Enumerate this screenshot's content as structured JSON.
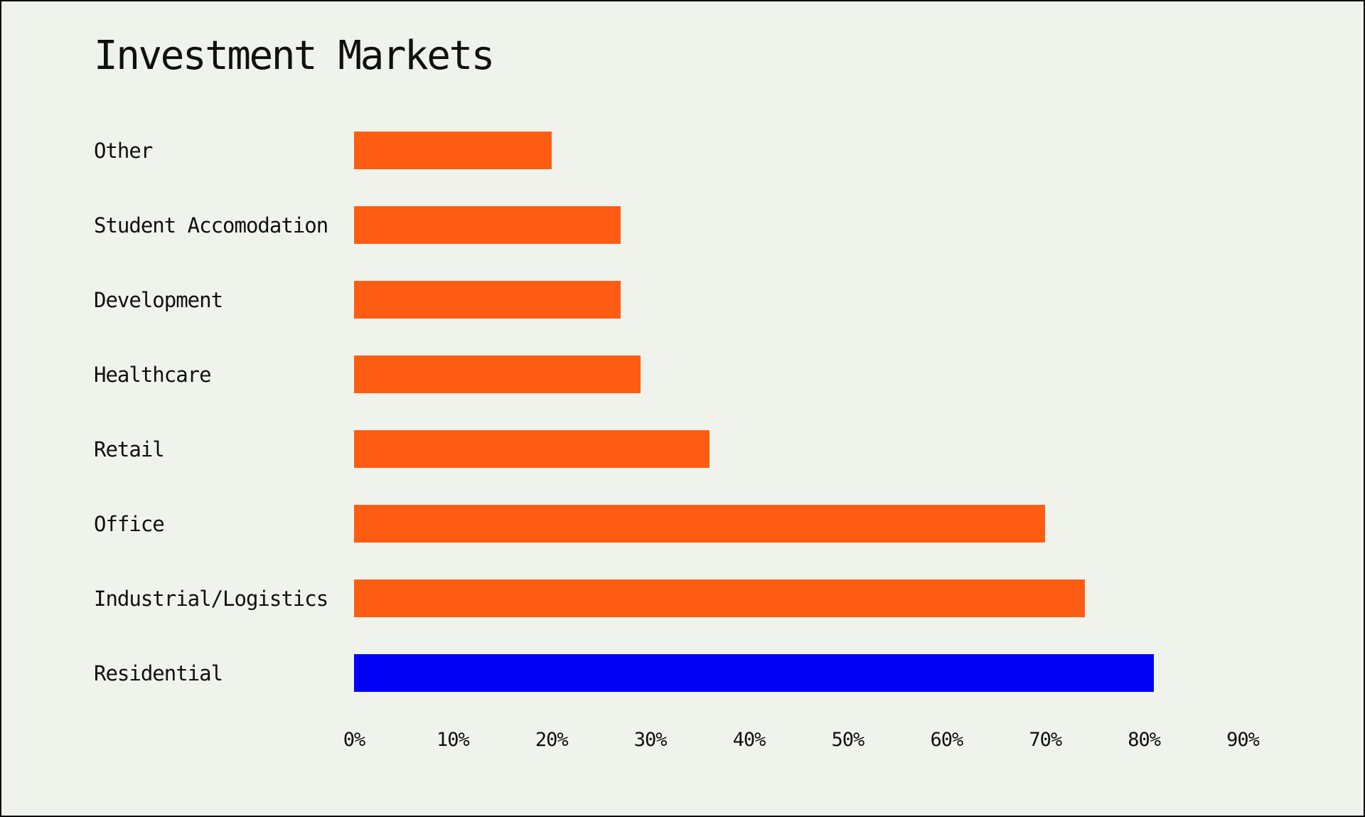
{
  "title": "Investment Markets",
  "colors": {
    "background": "#EFF3EC",
    "frame": "#0A0A0A",
    "text": "#101010",
    "bar_default": "#FF5C13",
    "bar_highlight": "#0000F5"
  },
  "chart_data": {
    "type": "bar",
    "orientation": "horizontal",
    "title": "Investment Markets",
    "categories": [
      "Other",
      "Student Accomodation",
      "Development",
      "Healthcare",
      "Retail",
      "Office",
      "Industrial/Logistics",
      "Residential"
    ],
    "values": [
      20,
      27,
      27,
      29,
      36,
      70,
      74,
      81
    ],
    "unit": "%",
    "bar_colors": [
      "#FF5C13",
      "#FF5C13",
      "#FF5C13",
      "#FF5C13",
      "#FF5C13",
      "#FF5C13",
      "#FF5C13",
      "#0000F5"
    ],
    "xlabel": "",
    "ylabel": "",
    "xlim": [
      0,
      90
    ],
    "x_ticks": [
      "0%",
      "10%",
      "20%",
      "30%",
      "40%",
      "50%",
      "60%",
      "70%",
      "80%",
      "90%"
    ],
    "grid": false,
    "legend": false
  }
}
